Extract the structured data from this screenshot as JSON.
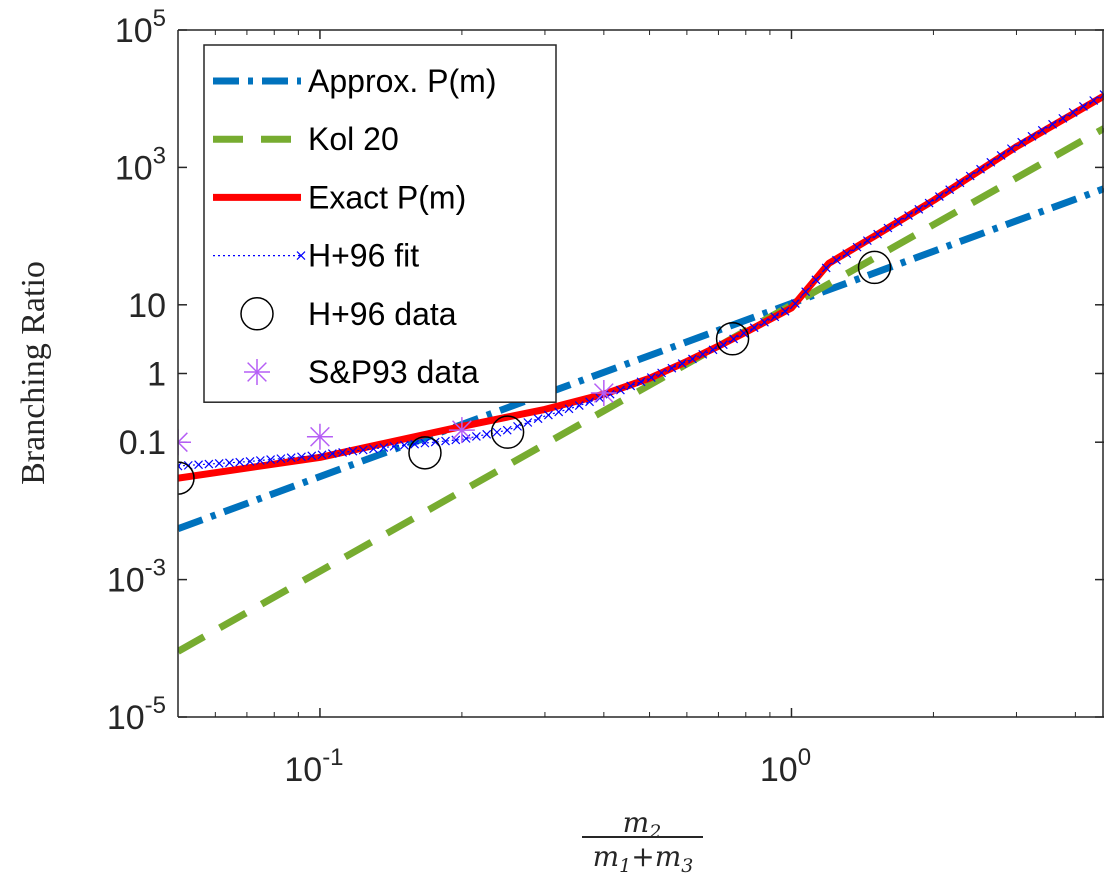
{
  "chart_data": {
    "type": "line",
    "ylabel": "Branching Ratio",
    "xlabel": {
      "numerator": "m2",
      "denominator": "m1+m3"
    },
    "xscale": "log",
    "yscale": "log",
    "xlim": [
      0.05,
      4.6
    ],
    "ylim": [
      1e-05,
      100000
    ],
    "grid": false,
    "legend_position": "top-left",
    "x_ticks": [
      {
        "value": 0.1,
        "base": "10",
        "exp": "-1"
      },
      {
        "value": 1,
        "base": "10",
        "exp": "0"
      }
    ],
    "y_ticks": [
      {
        "value": 1e-05,
        "base": "10",
        "exp": "-5"
      },
      {
        "value": 0.001,
        "base": "10",
        "exp": "-3"
      },
      {
        "value": 0.1,
        "base": "0.1",
        "exp": ""
      },
      {
        "value": 1,
        "base": "1",
        "exp": ""
      },
      {
        "value": 10,
        "base": "10",
        "exp": ""
      },
      {
        "value": 1000,
        "base": "10",
        "exp": "3"
      },
      {
        "value": 100000,
        "base": "10",
        "exp": "5"
      }
    ],
    "series": [
      {
        "name": "Approx. P(m)",
        "style": "dashdot",
        "color": "#0072BD",
        "x": [
          0.05,
          4.6
        ],
        "y": [
          0.0055,
          490
        ]
      },
      {
        "name": "Kol 20",
        "style": "dashed",
        "color": "#77AC30",
        "x": [
          0.05,
          4.6
        ],
        "y": [
          9e-05,
          3700
        ]
      },
      {
        "name": "Exact P(m)",
        "style": "solid",
        "color": "#FF0000",
        "x": [
          0.05,
          0.1,
          0.2,
          0.3,
          0.4,
          0.5,
          0.6,
          0.7,
          0.8,
          1.0,
          1.2,
          1.5,
          2.0,
          3.0,
          4.6
        ],
        "y": [
          0.03,
          0.06,
          0.17,
          0.3,
          0.5,
          0.85,
          1.5,
          2.5,
          4,
          9,
          40,
          100,
          330,
          2000,
          11000
        ]
      },
      {
        "name": "H+96 fit",
        "style": "dotted-x",
        "color": "#0000FF",
        "x": [
          0.05,
          0.07,
          0.1,
          0.15,
          0.2,
          0.25,
          0.3,
          0.35,
          0.4,
          0.5,
          0.6,
          0.7,
          0.8,
          1.0,
          1.2,
          1.5,
          2.0,
          3.0,
          4.6
        ],
        "y": [
          0.045,
          0.052,
          0.065,
          0.09,
          0.11,
          0.15,
          0.24,
          0.33,
          0.46,
          0.85,
          1.5,
          2.4,
          4,
          9,
          38,
          100,
          330,
          2100,
          11500
        ]
      },
      {
        "name": "H+96 data",
        "style": "circle",
        "color": "#000000",
        "x": [
          0.05,
          0.167,
          0.25,
          0.75,
          1.5
        ],
        "y": [
          0.03,
          0.07,
          0.14,
          3.2,
          35
        ]
      },
      {
        "name": "S&P93 data",
        "style": "asterisk",
        "color": "#B55EF5",
        "x": [
          0.05,
          0.1,
          0.2,
          0.4
        ],
        "y": [
          0.1,
          0.12,
          0.15,
          0.52
        ]
      }
    ]
  }
}
